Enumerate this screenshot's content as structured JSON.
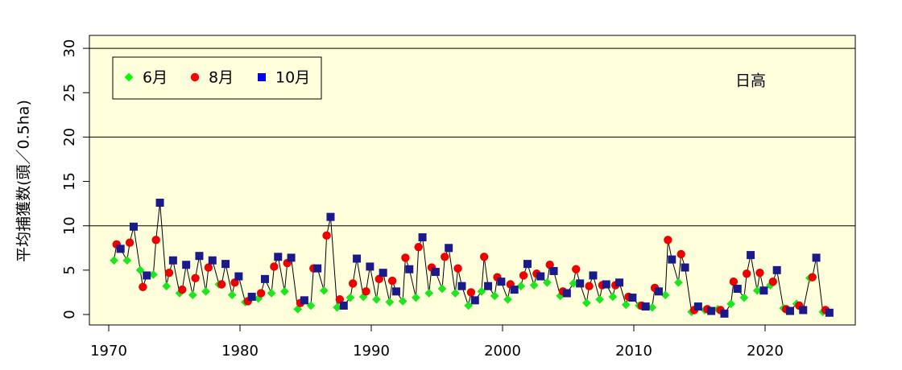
{
  "chart_data": {
    "type": "scatter",
    "region_label": "日高",
    "ylabel": "平均捕獲数(頭／0.5ha)",
    "xlim": [
      1970,
      2025
    ],
    "ylim": [
      0,
      30
    ],
    "xticks": [
      1970,
      1980,
      1990,
      2000,
      2010,
      2020
    ],
    "yticks": [
      0,
      5,
      10,
      15,
      20,
      25,
      30
    ],
    "hlines": [
      10,
      20,
      30
    ],
    "background": "#ffffdc",
    "line_color": "#000000",
    "legend_position": "top-left",
    "series": [
      {
        "name": "6月",
        "color": "#00ff00",
        "marker": "diamond",
        "x": [
          1970.4,
          1971.4,
          1972.4,
          1973.4,
          1974.4,
          1975.4,
          1976.4,
          1977.4,
          1978.4,
          1979.4,
          1980.4,
          1981.4,
          1982.4,
          1983.4,
          1984.4,
          1985.4,
          1986.4,
          1987.4,
          1988.4,
          1989.4,
          1990.4,
          1991.4,
          1992.4,
          1993.4,
          1994.4,
          1995.4,
          1996.4,
          1997.4,
          1998.4,
          1999.4,
          2000.4,
          2001.4,
          2002.4,
          2003.4,
          2004.4,
          2005.4,
          2006.4,
          2007.4,
          2008.4,
          2009.4,
          2010.4,
          2011.4,
          2012.4,
          2013.4,
          2014.4,
          2015.4,
          2016.4,
          2017.4,
          2018.4,
          2019.4,
          2020.4,
          2021.4,
          2022.4,
          2023.4,
          2024.4
        ],
        "y": [
          6.1,
          6.1,
          5.0,
          4.5,
          3.2,
          2.4,
          2.2,
          2.6,
          3.4,
          2.2,
          1.4,
          1.8,
          2.4,
          2.6,
          0.6,
          1.0,
          2.7,
          0.8,
          1.9,
          2.0,
          1.7,
          1.4,
          1.5,
          1.9,
          2.4,
          2.9,
          2.4,
          1.0,
          2.6,
          2.1,
          1.7,
          3.2,
          3.3,
          3.6,
          2.1,
          3.5,
          1.3,
          1.7,
          2.0,
          1.1,
          1.0,
          0.8,
          2.2,
          3.6,
          0.3,
          0.5,
          0.6,
          1.2,
          1.9,
          2.7,
          3.3,
          0.7,
          1.2,
          4.1,
          0.3
        ]
      },
      {
        "name": "8月",
        "color": "#ff0000",
        "marker": "circle",
        "x": [
          1970.6,
          1971.6,
          1972.6,
          1973.6,
          1974.6,
          1975.6,
          1976.6,
          1977.6,
          1978.6,
          1979.6,
          1980.6,
          1981.6,
          1982.6,
          1983.6,
          1984.6,
          1985.6,
          1986.6,
          1987.6,
          1988.6,
          1989.6,
          1990.6,
          1991.6,
          1992.6,
          1993.6,
          1994.6,
          1995.6,
          1996.6,
          1997.6,
          1998.6,
          1999.6,
          2000.6,
          2001.6,
          2002.6,
          2003.6,
          2004.6,
          2005.6,
          2006.6,
          2007.6,
          2008.6,
          2009.6,
          2010.6,
          2011.6,
          2012.6,
          2013.6,
          2014.6,
          2015.6,
          2016.6,
          2017.6,
          2018.6,
          2019.6,
          2020.6,
          2021.6,
          2022.6,
          2023.6,
          2024.6
        ],
        "y": [
          7.9,
          8.1,
          3.1,
          8.4,
          4.7,
          2.8,
          4.1,
          5.3,
          3.4,
          3.6,
          1.5,
          2.4,
          5.4,
          5.8,
          1.3,
          5.2,
          8.9,
          1.7,
          3.5,
          2.6,
          4.0,
          3.8,
          6.4,
          7.6,
          5.3,
          6.5,
          5.2,
          2.5,
          6.5,
          4.2,
          3.4,
          4.4,
          4.6,
          5.6,
          2.6,
          5.1,
          3.2,
          3.3,
          3.3,
          2.0,
          1.0,
          3.0,
          8.4,
          6.8,
          0.5,
          0.6,
          0.5,
          3.7,
          4.6,
          4.7,
          3.7,
          0.6,
          1.0,
          4.2,
          0.5
        ]
      },
      {
        "name": "10月",
        "color": "#0000ff",
        "marker": "square",
        "x": [
          1970.9,
          1971.9,
          1972.9,
          1973.9,
          1974.9,
          1975.9,
          1976.9,
          1977.9,
          1978.9,
          1979.9,
          1980.9,
          1981.9,
          1982.9,
          1983.9,
          1984.9,
          1985.9,
          1986.9,
          1987.9,
          1988.9,
          1989.9,
          1990.9,
          1991.9,
          1992.9,
          1993.9,
          1994.9,
          1995.9,
          1996.9,
          1997.9,
          1998.9,
          1999.9,
          2000.9,
          2001.9,
          2002.9,
          2003.9,
          2004.9,
          2005.9,
          2006.9,
          2007.9,
          2008.9,
          2009.9,
          2010.9,
          2011.9,
          2012.9,
          2013.9,
          2014.9,
          2015.9,
          2016.9,
          2017.9,
          2018.9,
          2019.9,
          2020.9,
          2021.9,
          2022.9,
          2023.9,
          2024.9
        ],
        "y": [
          7.4,
          9.9,
          4.4,
          12.6,
          6.1,
          5.6,
          6.6,
          6.1,
          5.7,
          4.3,
          2.0,
          4.0,
          6.5,
          6.4,
          1.6,
          5.2,
          11.0,
          1.0,
          6.3,
          5.4,
          4.7,
          2.6,
          5.1,
          8.7,
          4.8,
          7.5,
          3.2,
          1.6,
          3.2,
          3.7,
          2.8,
          5.7,
          4.3,
          4.9,
          2.4,
          3.5,
          4.4,
          3.4,
          3.6,
          1.9,
          0.9,
          2.6,
          6.2,
          5.3,
          0.9,
          0.4,
          0.1,
          2.9,
          6.7,
          2.7,
          5.0,
          0.4,
          0.5,
          6.4,
          0.2
        ]
      }
    ]
  }
}
